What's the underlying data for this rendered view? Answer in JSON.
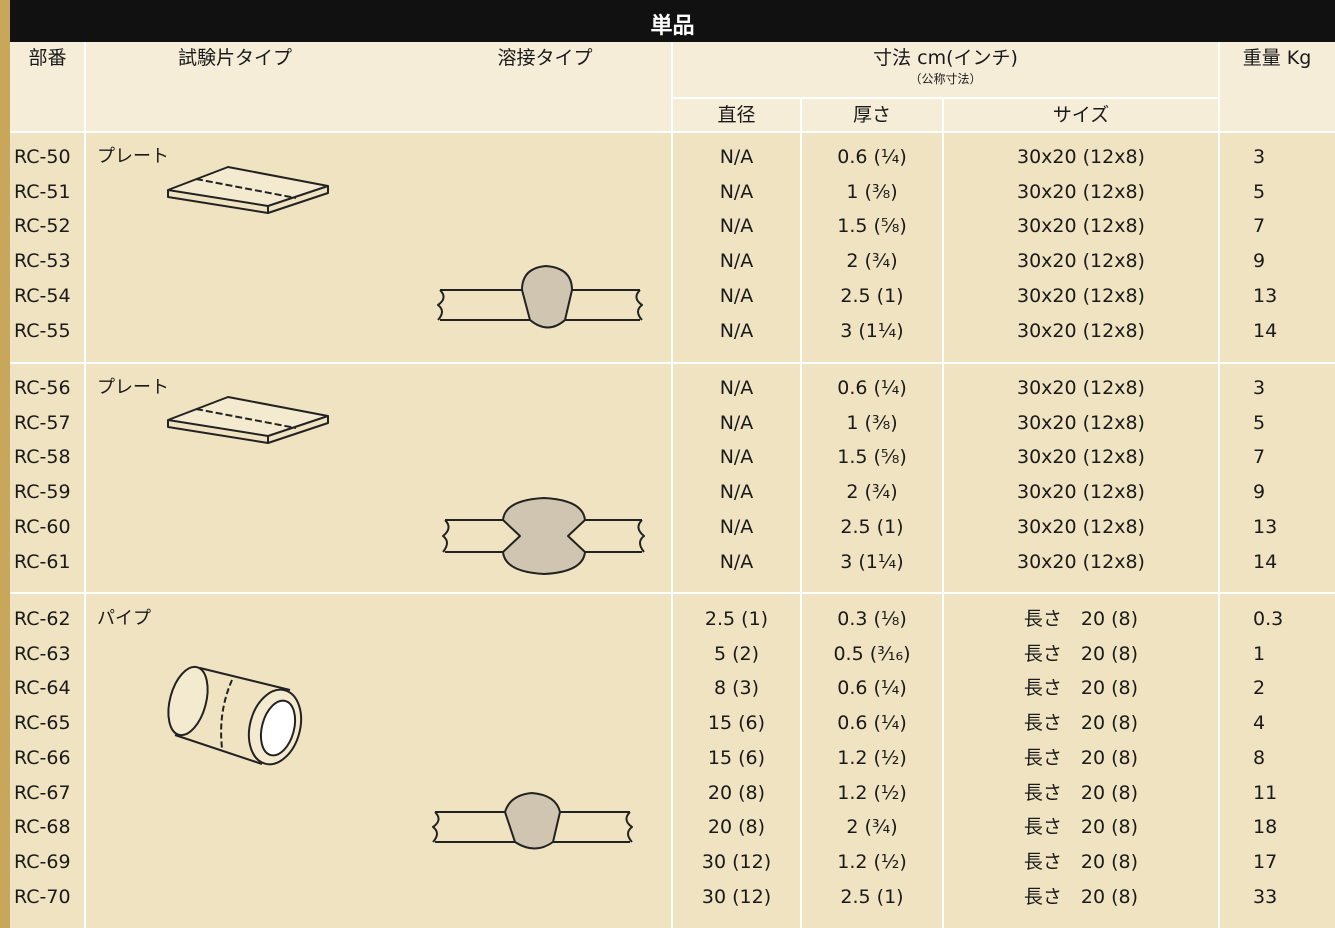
{
  "header": {
    "title": "単品",
    "columns": {
      "part": "部番",
      "specimen_type": "試験片タイプ",
      "weld_type": "溶接タイプ",
      "dimensions": "寸法 cm(インチ)",
      "dimensions_note": "（公称寸法）",
      "diameter": "直径",
      "thickness": "厚さ",
      "size": "サイズ",
      "weight": "重量 Kg"
    }
  },
  "table": {
    "groups": [
      {
        "type": "プレート",
        "rows": [
          [
            "RC-50",
            "N/A",
            "0.6 (¹⁄₄)",
            "30x20 (12x8)",
            "3"
          ],
          [
            "RC-51",
            "N/A",
            "1 (³⁄₈)",
            "30x20 (12x8)",
            "5"
          ],
          [
            "RC-52",
            "N/A",
            "1.5 (⁵⁄₈)",
            "30x20 (12x8)",
            "7"
          ],
          [
            "RC-53",
            "N/A",
            "2 (³⁄₄)",
            "30x20 (12x8)",
            "9"
          ],
          [
            "RC-54",
            "N/A",
            "2.5 (1)",
            "30x20 (12x8)",
            "13"
          ],
          [
            "RC-55",
            "N/A",
            "3 (1¹⁄₄)",
            "30x20 (12x8)",
            "14"
          ]
        ]
      },
      {
        "type": "プレート",
        "rows": [
          [
            "RC-56",
            "N/A",
            "0.6 (¹⁄₄)",
            "30x20 (12x8)",
            "3"
          ],
          [
            "RC-57",
            "N/A",
            "1 (³⁄₈)",
            "30x20 (12x8)",
            "5"
          ],
          [
            "RC-58",
            "N/A",
            "1.5 (⁵⁄₈)",
            "30x20 (12x8)",
            "7"
          ],
          [
            "RC-59",
            "N/A",
            "2 (³⁄₄)",
            "30x20 (12x8)",
            "9"
          ],
          [
            "RC-60",
            "N/A",
            "2.5 (1)",
            "30x20 (12x8)",
            "13"
          ],
          [
            "RC-61",
            "N/A",
            "3 (1¹⁄₄)",
            "30x20 (12x8)",
            "14"
          ]
        ]
      },
      {
        "type": "パイプ",
        "rows": [
          [
            "RC-62",
            "2.5 (1)",
            "0.3 (¹⁄₈)",
            "長さ　20 (8)",
            "0.3"
          ],
          [
            "RC-63",
            "5 (2)",
            "0.5 (³⁄₁₆)",
            "長さ　20 (8)",
            "1"
          ],
          [
            "RC-64",
            "8 (3)",
            "0.6 (¹⁄₄)",
            "長さ　20 (8)",
            "2"
          ],
          [
            "RC-65",
            "15 (6)",
            "0.6 (¹⁄₄)",
            "長さ　20 (8)",
            "4"
          ],
          [
            "RC-66",
            "15 (6)",
            "1.2 (¹⁄₂)",
            "長さ　20 (8)",
            "8"
          ],
          [
            "RC-67",
            "20 (8)",
            "1.2 (¹⁄₂)",
            "長さ　20 (8)",
            "11"
          ],
          [
            "RC-68",
            "20 (8)",
            "2 (³⁄₄)",
            "長さ　20 (8)",
            "18"
          ],
          [
            "RC-69",
            "30 (12)",
            "1.2 (¹⁄₂)",
            "長さ　20 (8)",
            "17"
          ],
          [
            "RC-70",
            "30 (12)",
            "2.5 (1)",
            "長さ　20 (8)",
            "33"
          ]
        ]
      }
    ]
  }
}
